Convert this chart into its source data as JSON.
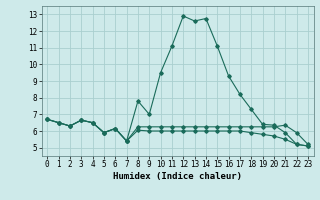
{
  "xlabel": "Humidex (Indice chaleur)",
  "x_ticks": [
    0,
    1,
    2,
    3,
    4,
    5,
    6,
    7,
    8,
    9,
    10,
    11,
    12,
    13,
    14,
    15,
    16,
    17,
    18,
    19,
    20,
    21,
    22,
    23
  ],
  "ylim": [
    4.5,
    13.5
  ],
  "xlim": [
    -0.5,
    23.5
  ],
  "yticks": [
    5,
    6,
    7,
    8,
    9,
    10,
    11,
    12,
    13
  ],
  "bg_color": "#ceeaea",
  "grid_color": "#aacfcf",
  "line_color": "#1a6b5a",
  "series": [
    [
      6.7,
      6.5,
      6.3,
      6.65,
      6.5,
      5.9,
      6.15,
      5.4,
      7.8,
      7.0,
      9.5,
      11.1,
      12.9,
      12.6,
      12.75,
      11.1,
      9.3,
      8.2,
      7.3,
      6.4,
      6.35,
      5.9,
      5.2,
      5.1
    ],
    [
      6.7,
      6.5,
      6.3,
      6.65,
      6.5,
      5.9,
      6.15,
      5.4,
      6.25,
      6.25,
      6.25,
      6.25,
      6.25,
      6.25,
      6.25,
      6.25,
      6.25,
      6.25,
      6.25,
      6.25,
      6.25,
      6.35,
      5.9,
      5.2
    ],
    [
      6.7,
      6.5,
      6.3,
      6.65,
      6.5,
      5.9,
      6.15,
      5.4,
      6.05,
      6.0,
      6.0,
      6.0,
      6.0,
      6.0,
      6.0,
      6.0,
      6.0,
      6.0,
      5.9,
      5.8,
      5.7,
      5.5,
      5.2,
      5.1
    ]
  ],
  "tick_fontsize": 5.5,
  "xlabel_fontsize": 6.5
}
